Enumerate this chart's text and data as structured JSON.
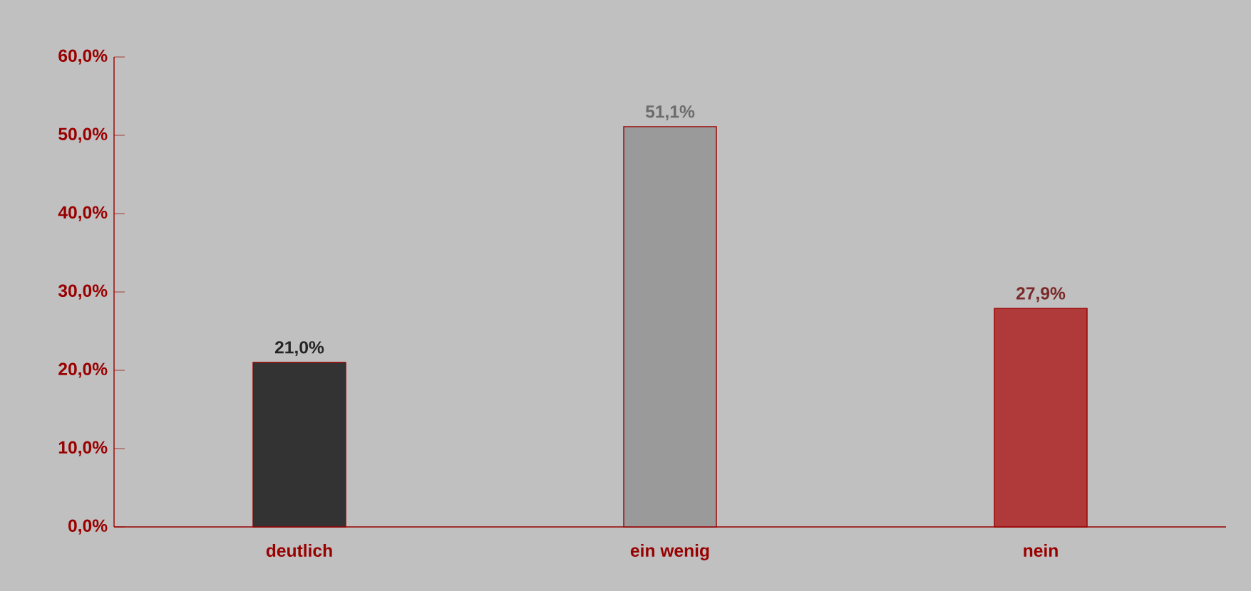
{
  "chart_data": {
    "type": "bar",
    "categories": [
      "deutlich",
      "ein wenig",
      "nein"
    ],
    "values": [
      21.0,
      51.1,
      27.9
    ],
    "colors": [
      "#333333",
      "#9a9a9a",
      "#b03a3a"
    ],
    "value_labels": [
      "21,0%",
      "51,1%",
      "27,9%"
    ],
    "ylim": [
      0,
      60
    ],
    "yticks": [
      {
        "value": 0,
        "label": "0,0%"
      },
      {
        "value": 10,
        "label": "10,0%"
      },
      {
        "value": 20,
        "label": "20,0%"
      },
      {
        "value": 30,
        "label": "30,0%"
      },
      {
        "value": 40,
        "label": "40,0%"
      },
      {
        "value": 50,
        "label": "50,0%"
      },
      {
        "value": 60,
        "label": "60,0%"
      }
    ]
  }
}
